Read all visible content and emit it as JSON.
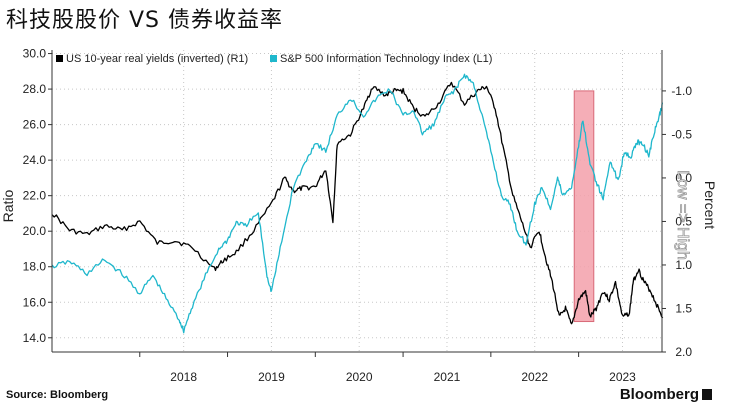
{
  "title": "科技股股价 VS 债券收益率",
  "source": "Source: Bloomberg",
  "brand": "Bloomberg",
  "chart_data": {
    "type": "line",
    "x_tick_labels": [
      "2018",
      "2019",
      "2020",
      "2021",
      "2022",
      "2023"
    ],
    "left_axis": {
      "label": "Ratio",
      "ylim": [
        13.2,
        30.2
      ],
      "ticks": [
        "14.0",
        "16.0",
        "18.0",
        "20.0",
        "22.0",
        "24.0",
        "26.0",
        "28.0",
        "30.0"
      ]
    },
    "right_axis": {
      "label": "Percent",
      "inner_label": "Low => High",
      "ylim": [
        2.0,
        -1.47
      ],
      "inverted": true,
      "ticks": [
        "-1.0",
        "-0.5",
        "0.0",
        "0.5",
        "1.0",
        "1.5",
        "2.0"
      ]
    },
    "legend_placement": "top-left",
    "highlight": {
      "x_range": [
        2022.95,
        2023.15
      ],
      "color": "#f3a0aa"
    },
    "series": [
      {
        "name": "US 10-year real yields (inverted) (R1)",
        "axis": "right",
        "color": "#000000",
        "points": [
          [
            2017.0,
            0.4
          ],
          [
            2017.2,
            0.6
          ],
          [
            2017.4,
            0.65
          ],
          [
            2017.6,
            0.55
          ],
          [
            2017.8,
            0.6
          ],
          [
            2018.0,
            0.5
          ],
          [
            2018.2,
            0.75
          ],
          [
            2018.4,
            0.72
          ],
          [
            2018.6,
            0.8
          ],
          [
            2018.85,
            1.05
          ],
          [
            2018.95,
            0.95
          ],
          [
            2019.1,
            0.85
          ],
          [
            2019.3,
            0.6
          ],
          [
            2019.5,
            0.3
          ],
          [
            2019.65,
            0.0
          ],
          [
            2019.75,
            0.15
          ],
          [
            2019.85,
            0.12
          ],
          [
            2020.0,
            0.1
          ],
          [
            2020.12,
            -0.1
          ],
          [
            2020.2,
            0.5
          ],
          [
            2020.25,
            -0.4
          ],
          [
            2020.4,
            -0.5
          ],
          [
            2020.55,
            -0.8
          ],
          [
            2020.65,
            -1.05
          ],
          [
            2020.8,
            -0.95
          ],
          [
            2020.9,
            -1.0
          ],
          [
            2021.0,
            -1.0
          ],
          [
            2021.12,
            -0.8
          ],
          [
            2021.25,
            -0.7
          ],
          [
            2021.4,
            -0.85
          ],
          [
            2021.55,
            -1.1
          ],
          [
            2021.7,
            -0.85
          ],
          [
            2021.85,
            -1.0
          ],
          [
            2021.95,
            -1.05
          ],
          [
            2022.05,
            -0.8
          ],
          [
            2022.15,
            -0.3
          ],
          [
            2022.25,
            0.2
          ],
          [
            2022.35,
            0.5
          ],
          [
            2022.45,
            0.8
          ],
          [
            2022.55,
            0.6
          ],
          [
            2022.62,
            0.9
          ],
          [
            2022.7,
            1.2
          ],
          [
            2022.78,
            1.6
          ],
          [
            2022.85,
            1.5
          ],
          [
            2022.92,
            1.7
          ],
          [
            2023.0,
            1.4
          ],
          [
            2023.08,
            1.3
          ],
          [
            2023.13,
            1.6
          ],
          [
            2023.2,
            1.5
          ],
          [
            2023.28,
            1.3
          ],
          [
            2023.35,
            1.4
          ],
          [
            2023.42,
            1.2
          ],
          [
            2023.5,
            1.6
          ],
          [
            2023.58,
            1.55
          ],
          [
            2023.62,
            1.2
          ],
          [
            2023.68,
            1.05
          ],
          [
            2023.75,
            1.2
          ],
          [
            2023.82,
            1.3
          ],
          [
            2023.9,
            1.48
          ],
          [
            2023.96,
            1.6
          ]
        ]
      },
      {
        "name": "S&P 500 Information Technology Index (L1)",
        "axis": "left",
        "color": "#1fb7cc",
        "points": [
          [
            2017.0,
            18.0
          ],
          [
            2017.2,
            18.3
          ],
          [
            2017.4,
            17.6
          ],
          [
            2017.6,
            18.4
          ],
          [
            2017.8,
            17.6
          ],
          [
            2018.0,
            16.5
          ],
          [
            2018.15,
            17.5
          ],
          [
            2018.3,
            16.2
          ],
          [
            2018.45,
            15.0
          ],
          [
            2018.5,
            14.4
          ],
          [
            2018.6,
            15.8
          ],
          [
            2018.75,
            17.5
          ],
          [
            2018.9,
            19.0
          ],
          [
            2019.0,
            19.5
          ],
          [
            2019.1,
            20.5
          ],
          [
            2019.2,
            20.3
          ],
          [
            2019.35,
            21.0
          ],
          [
            2019.45,
            17.5
          ],
          [
            2019.5,
            16.6
          ],
          [
            2019.6,
            19.0
          ],
          [
            2019.75,
            22.5
          ],
          [
            2019.9,
            24.0
          ],
          [
            2020.0,
            25.0
          ],
          [
            2020.12,
            24.5
          ],
          [
            2020.25,
            26.5
          ],
          [
            2020.4,
            27.5
          ],
          [
            2020.55,
            26.5
          ],
          [
            2020.7,
            27.5
          ],
          [
            2020.85,
            28.0
          ],
          [
            2021.0,
            26.5
          ],
          [
            2021.12,
            26.8
          ],
          [
            2021.22,
            25.5
          ],
          [
            2021.35,
            26.0
          ],
          [
            2021.48,
            27.5
          ],
          [
            2021.6,
            28.0
          ],
          [
            2021.7,
            28.8
          ],
          [
            2021.8,
            28.3
          ],
          [
            2021.9,
            26.5
          ],
          [
            2022.0,
            24.5
          ],
          [
            2022.12,
            22.0
          ],
          [
            2022.22,
            21.5
          ],
          [
            2022.3,
            20.0
          ],
          [
            2022.4,
            19.3
          ],
          [
            2022.5,
            21.5
          ],
          [
            2022.58,
            22.5
          ],
          [
            2022.68,
            21.3
          ],
          [
            2022.76,
            23.0
          ],
          [
            2022.82,
            22.0
          ],
          [
            2022.92,
            22.5
          ],
          [
            2023.0,
            24.8
          ],
          [
            2023.05,
            26.3
          ],
          [
            2023.12,
            24.0
          ],
          [
            2023.2,
            22.8
          ],
          [
            2023.28,
            21.8
          ],
          [
            2023.36,
            24.0
          ],
          [
            2023.45,
            22.8
          ],
          [
            2023.52,
            24.5
          ],
          [
            2023.6,
            24.2
          ],
          [
            2023.66,
            25.0
          ],
          [
            2023.72,
            25.0
          ],
          [
            2023.8,
            24.3
          ],
          [
            2023.86,
            25.5
          ],
          [
            2023.92,
            26.5
          ],
          [
            2023.96,
            27.2
          ]
        ]
      }
    ]
  }
}
